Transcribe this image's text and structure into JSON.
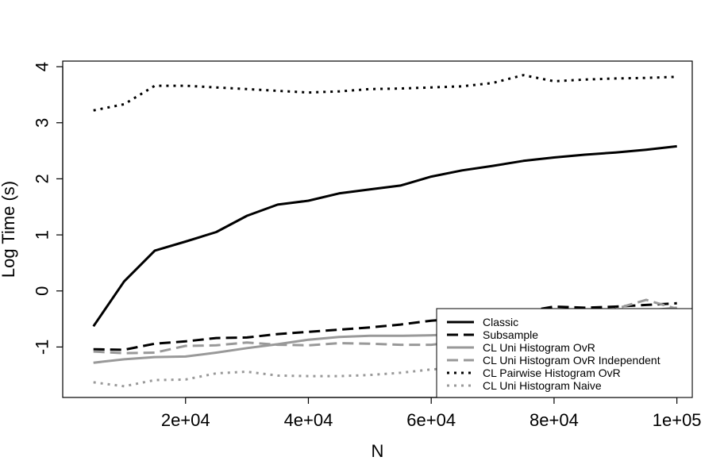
{
  "chart_data": {
    "type": "line",
    "title": "",
    "xlabel": "N",
    "ylabel": "Log Time (s)",
    "xlim": [
      0,
      102500
    ],
    "ylim": [
      -1.9,
      4.1
    ],
    "x_ticks": [
      20000,
      40000,
      60000,
      80000,
      100000
    ],
    "x_tick_labels": [
      "2e+04",
      "4e+04",
      "6e+04",
      "8e+04",
      "1e+05"
    ],
    "y_ticks": [
      -1,
      0,
      1,
      2,
      3,
      4
    ],
    "y_tick_labels": [
      "-1",
      "0",
      "1",
      "2",
      "3",
      "4"
    ],
    "grid": false,
    "legend_position": "bottom-right",
    "x": [
      5000,
      10000,
      15000,
      20000,
      25000,
      30000,
      35000,
      40000,
      45000,
      50000,
      55000,
      60000,
      65000,
      70000,
      75000,
      80000,
      85000,
      90000,
      95000,
      100000
    ],
    "series": [
      {
        "name": "Classic",
        "color": "#000000",
        "dash": "solid",
        "width": 3,
        "values": [
          -0.63,
          0.17,
          0.72,
          0.88,
          1.05,
          1.34,
          1.54,
          1.61,
          1.74,
          1.81,
          1.88,
          2.04,
          2.15,
          2.23,
          2.32,
          2.38,
          2.43,
          2.47,
          2.52,
          2.58
        ]
      },
      {
        "name": "Subsample",
        "color": "#000000",
        "dash": "dashed",
        "width": 3,
        "values": [
          -1.04,
          -1.05,
          -0.94,
          -0.9,
          -0.84,
          -0.83,
          -0.77,
          -0.73,
          -0.69,
          -0.65,
          -0.6,
          -0.53,
          -0.49,
          -0.44,
          -0.37,
          -0.28,
          -0.3,
          -0.28,
          -0.25,
          -0.22
        ]
      },
      {
        "name": "CL Uni Histogram OvR",
        "color": "#999999",
        "dash": "solid",
        "width": 3,
        "values": [
          -1.28,
          -1.22,
          -1.18,
          -1.17,
          -1.1,
          -1.02,
          -0.95,
          -0.87,
          -0.82,
          -0.8,
          -0.8,
          -0.79,
          -0.77,
          -0.75,
          -0.72,
          -0.65,
          -0.58,
          -0.45,
          -0.35,
          -0.3
        ]
      },
      {
        "name": "CL Uni Histogram OvR Independent",
        "color": "#999999",
        "dash": "dashed",
        "width": 3,
        "values": [
          -1.08,
          -1.11,
          -1.1,
          -0.98,
          -0.97,
          -0.92,
          -0.96,
          -0.97,
          -0.93,
          -0.94,
          -0.96,
          -0.96,
          -0.9,
          -0.83,
          -0.74,
          -0.62,
          -0.47,
          -0.32,
          -0.16,
          -0.32
        ]
      },
      {
        "name": "CL Pairwise Histogram OvR",
        "color": "#000000",
        "dash": "dotted",
        "width": 3,
        "values": [
          3.22,
          3.33,
          3.66,
          3.66,
          3.63,
          3.6,
          3.57,
          3.54,
          3.56,
          3.6,
          3.61,
          3.63,
          3.65,
          3.71,
          3.85,
          3.74,
          3.77,
          3.79,
          3.8,
          3.82
        ]
      },
      {
        "name": "CL Uni Histogram Naive",
        "color": "#999999",
        "dash": "dotted",
        "width": 3,
        "values": [
          -1.63,
          -1.7,
          -1.59,
          -1.58,
          -1.47,
          -1.44,
          -1.51,
          -1.52,
          -1.52,
          -1.5,
          -1.46,
          -1.4,
          -1.37,
          -1.35,
          -1.33,
          -1.3,
          -1.28,
          -1.25,
          -1.22,
          -1.2
        ]
      }
    ]
  }
}
